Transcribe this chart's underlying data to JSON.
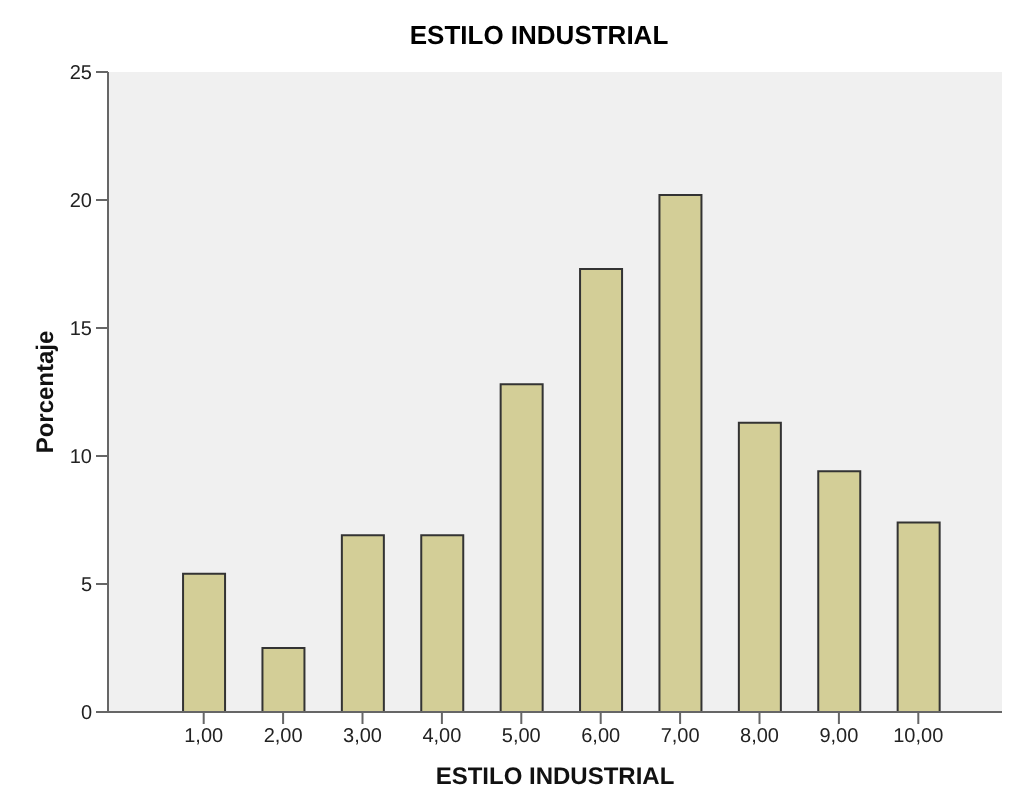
{
  "chart_data": {
    "type": "bar",
    "title": "ESTILO INDUSTRIAL",
    "xlabel": "ESTILO INDUSTRIAL",
    "ylabel": "Porcentaje",
    "categories": [
      "1,00",
      "2,00",
      "3,00",
      "4,00",
      "5,00",
      "6,00",
      "7,00",
      "8,00",
      "9,00",
      "10,00"
    ],
    "values": [
      5.4,
      2.5,
      6.9,
      6.9,
      12.8,
      17.3,
      20.2,
      11.3,
      9.4,
      7.4
    ],
    "color": "#d3ce97",
    "ylim": [
      0,
      25
    ],
    "yticks": [
      0,
      5,
      10,
      15,
      20,
      25
    ],
    "grid": false
  }
}
